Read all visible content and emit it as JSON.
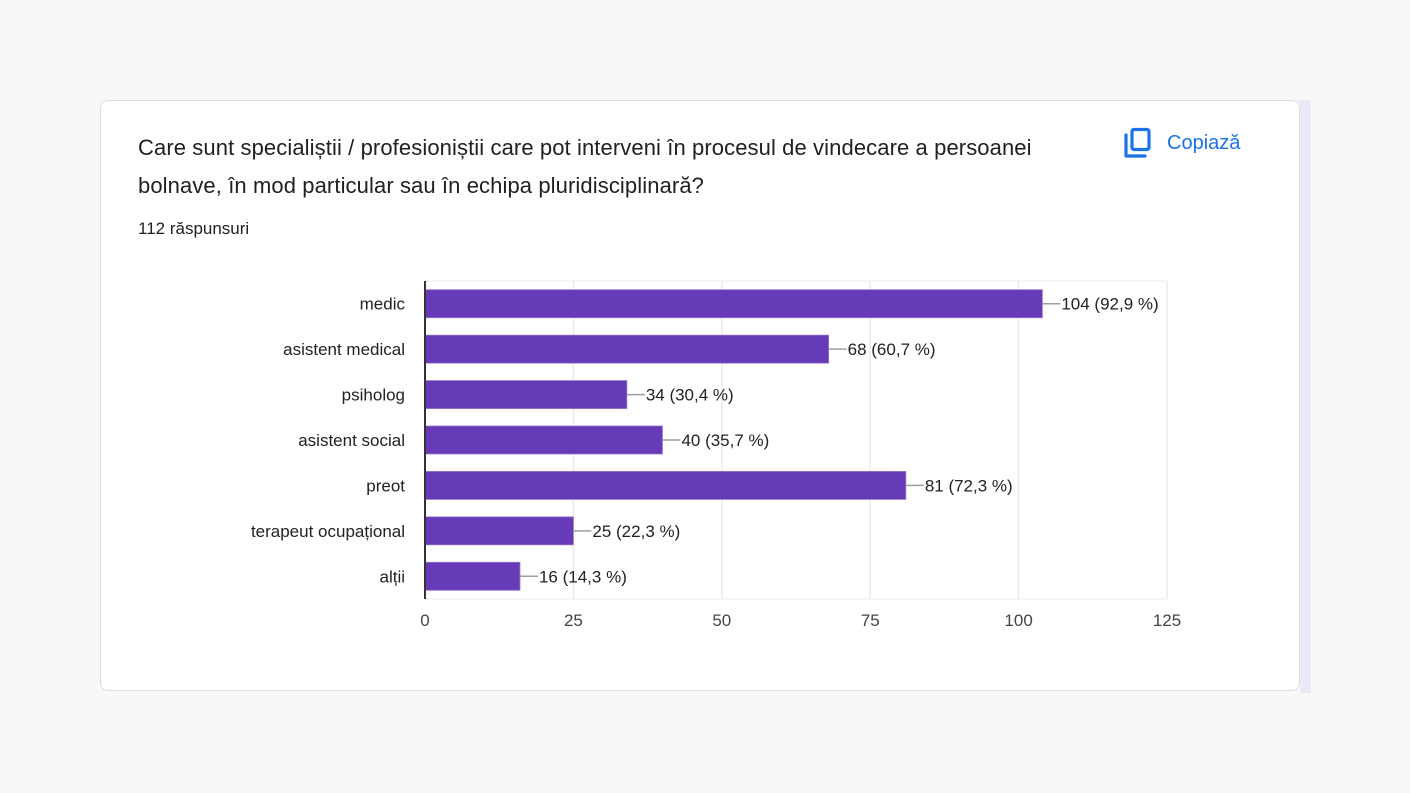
{
  "card": {
    "question": "Care sunt specialiștii / profesioniștii care pot interveni în procesul de vindecare a persoanei bolnave, în mod particular sau în echipa pluridisciplinară?",
    "responses": "112 răspunsuri",
    "copy_button": {
      "label": "Copiază",
      "icon": "copy-icon"
    }
  },
  "colors": {
    "bar": "#673ab7",
    "accent": "#1a73e8"
  },
  "chart_data": {
    "type": "bar",
    "orientation": "horizontal",
    "title": "Care sunt specialiștii / profesioniștii care pot interveni în procesul de vindecare a persoanei bolnave, în mod particular sau în echipa pluridisciplinară?",
    "subtitle": "112 răspunsuri",
    "categories": [
      "medic",
      "asistent medical",
      "psiholog",
      "asistent social",
      "preot",
      "terapeut ocupațional",
      "alții"
    ],
    "values": [
      104,
      68,
      34,
      40,
      81,
      25,
      16
    ],
    "percentages": [
      "92,9 %",
      "60,7 %",
      "30,4 %",
      "35,7 %",
      "72,3 %",
      "22,3 %",
      "14,3 %"
    ],
    "data_labels": [
      "104 (92,9 %)",
      "68 (60,7 %)",
      "34 (30,4 %)",
      "40 (35,7 %)",
      "81 (72,3 %)",
      "25 (22,3 %)",
      "16 (14,3 %)"
    ],
    "xlabel": "",
    "ylabel": "",
    "xlim": [
      0,
      125
    ],
    "xticks": [
      0,
      25,
      50,
      75,
      100,
      125
    ],
    "grid": true,
    "legend": "none"
  }
}
